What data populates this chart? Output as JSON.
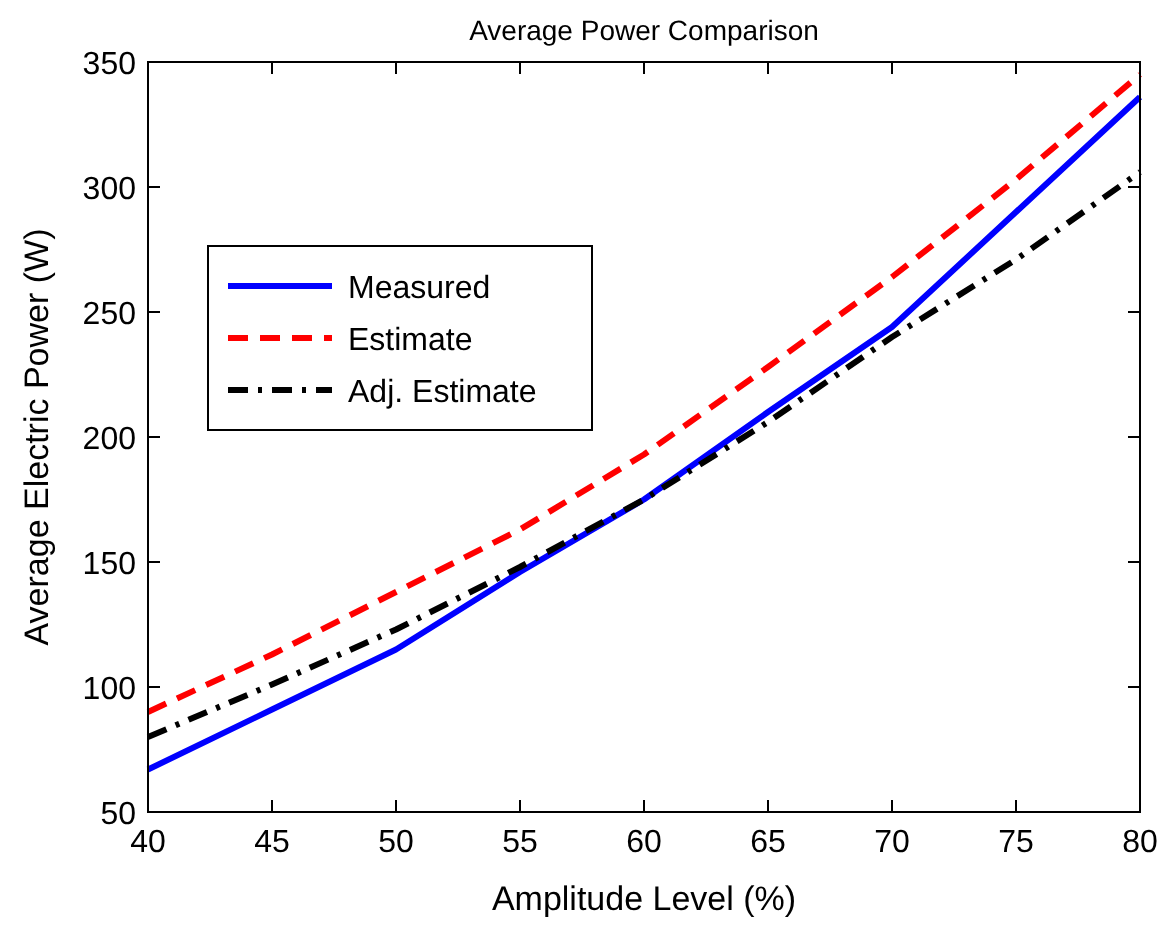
{
  "chart_data": {
    "type": "line",
    "title": "Average Power Comparison",
    "xlabel": "Amplitude Level (%)",
    "ylabel": "Average Electric Power (W)",
    "x": [
      40,
      45,
      50,
      55,
      60,
      65,
      70,
      75,
      80
    ],
    "series": [
      {
        "name": "Measured",
        "color": "#0000ff",
        "line_style": "solid",
        "values": [
          67,
          91,
          115,
          146,
          175,
          210,
          244,
          290,
          336
        ]
      },
      {
        "name": "Estimate",
        "color": "#ff0000",
        "line_style": "dashed",
        "values": [
          90,
          113,
          138,
          163,
          193,
          228,
          264,
          303,
          345
        ]
      },
      {
        "name": "Adj. Estimate",
        "color": "#000000",
        "line_style": "dashdot",
        "values": [
          80,
          101,
          123,
          148,
          175,
          206,
          240,
          271,
          306
        ]
      }
    ],
    "xlim": [
      40,
      80
    ],
    "xticks": [
      40,
      45,
      50,
      55,
      60,
      65,
      70,
      75,
      80
    ],
    "ylim": [
      50,
      350
    ],
    "yticks": [
      50,
      100,
      150,
      200,
      250,
      300,
      350
    ],
    "legend": "top left",
    "grid": false,
    "marker": "none"
  }
}
